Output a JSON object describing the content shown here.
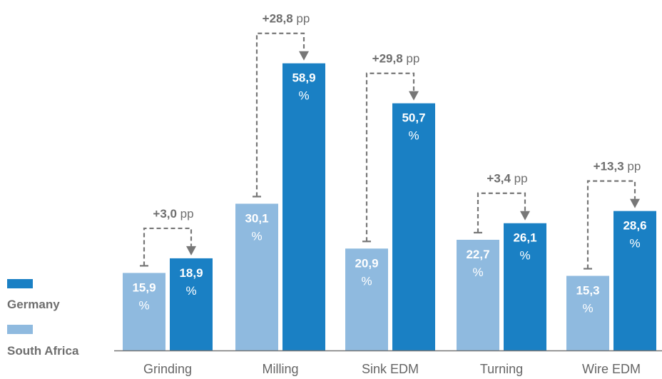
{
  "chart_data": {
    "type": "bar",
    "categories": [
      "Grinding",
      "Milling",
      "Sink EDM",
      "Turning",
      "Wire EDM"
    ],
    "series": [
      {
        "name": "South Africa",
        "color": "#8fbadf",
        "values": [
          15.9,
          30.1,
          20.9,
          22.7,
          15.3
        ],
        "labels": [
          "15,9",
          "30,1",
          "20,9",
          "22,7",
          "15,3"
        ]
      },
      {
        "name": "Germany",
        "color": "#1a80c4",
        "values": [
          18.9,
          58.9,
          50.7,
          26.1,
          28.6
        ],
        "labels": [
          "18,9",
          "58,9",
          "50,7",
          "26,1",
          "28,6"
        ]
      }
    ],
    "value_unit": "%",
    "differences": {
      "values": [
        3.0,
        28.8,
        29.8,
        3.4,
        13.3
      ],
      "labels": [
        "+3,0",
        "+28,8",
        "+29,8",
        "+3,4",
        "+13,3"
      ],
      "unit": "pp"
    },
    "legend_placement": "bottom-left",
    "grid": false,
    "xlabel": "",
    "ylabel": "",
    "ylim": [
      0,
      60
    ]
  }
}
